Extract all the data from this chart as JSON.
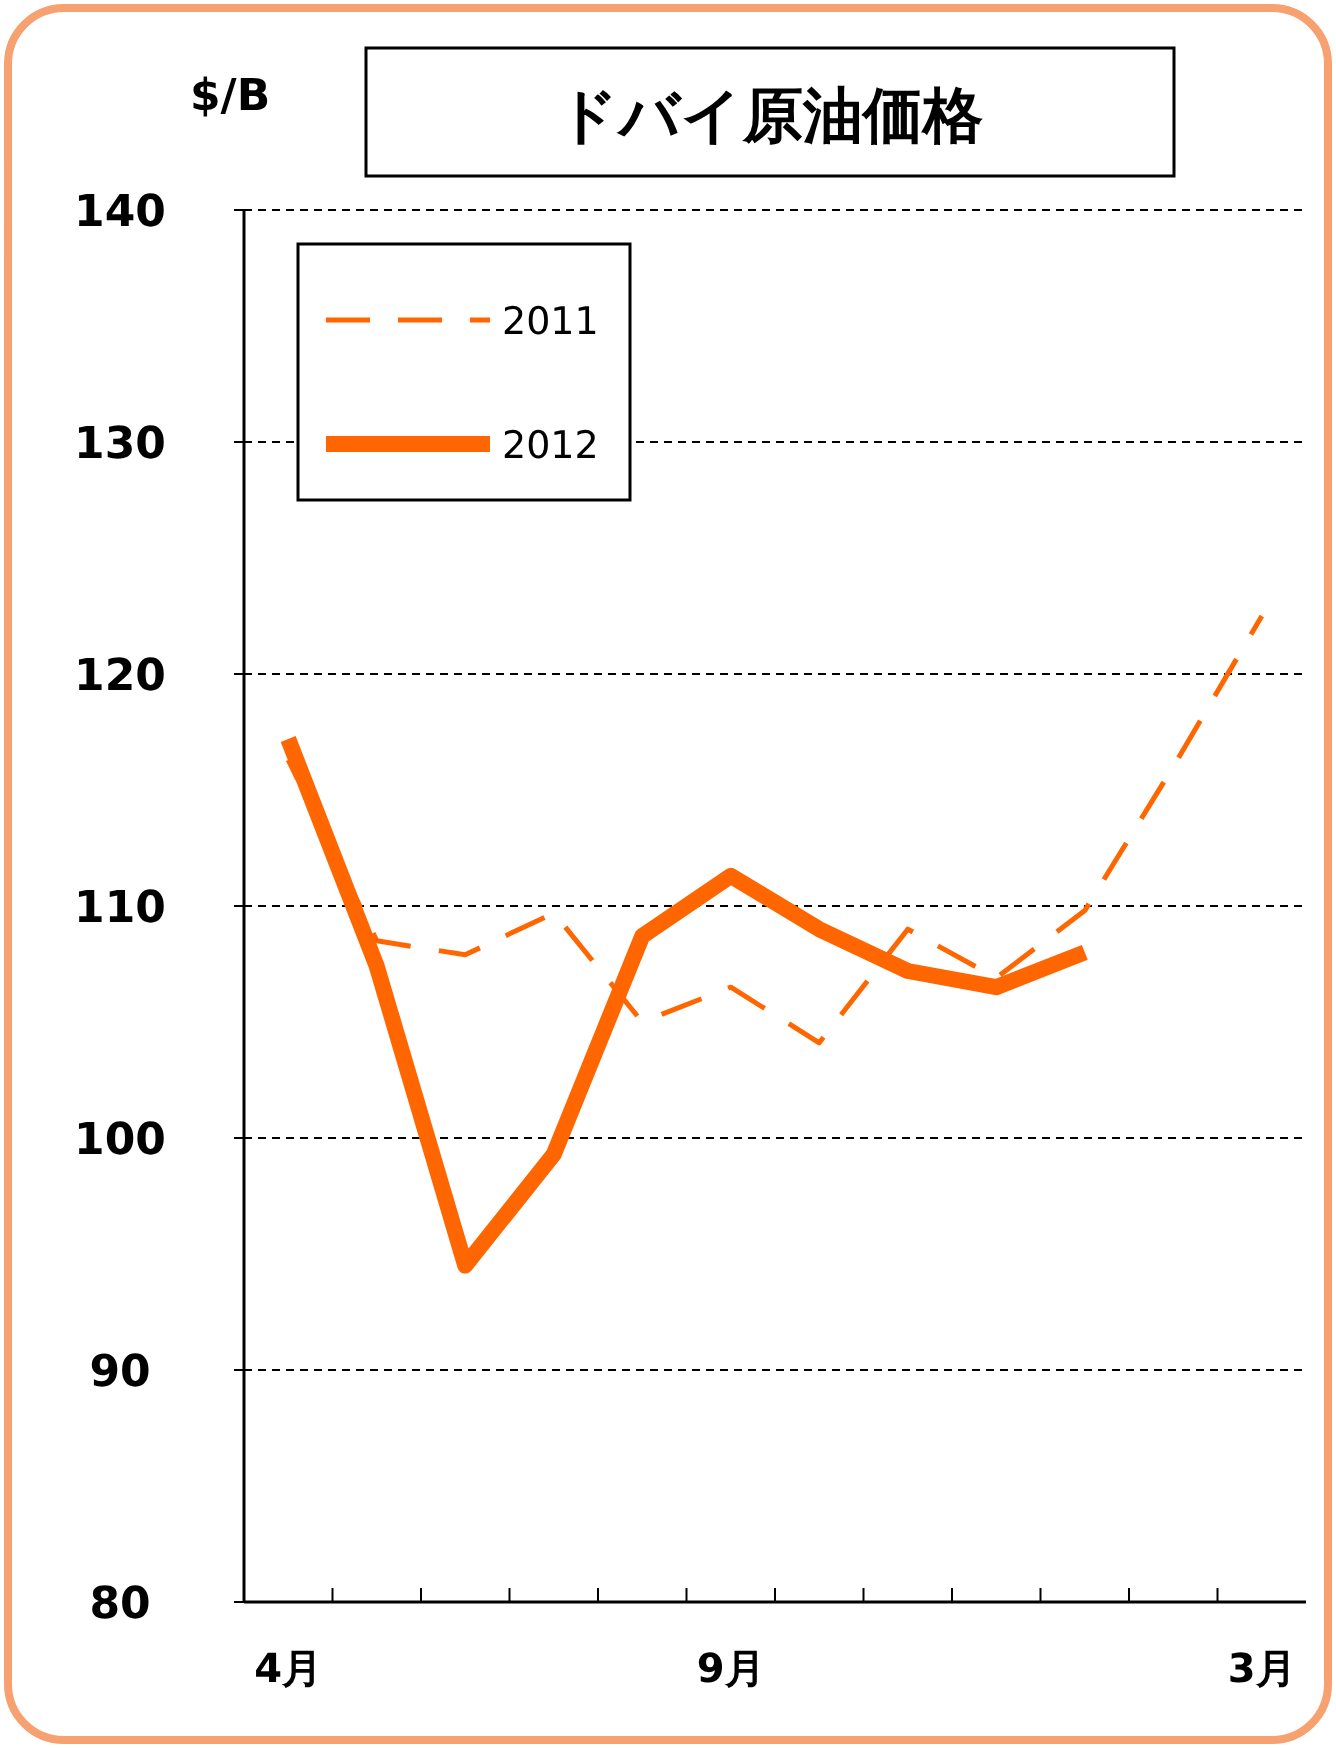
{
  "chart_data": {
    "type": "line",
    "title": "ドバイ原油価格",
    "ylabel": "$/B",
    "categories": [
      "4月",
      null,
      null,
      null,
      null,
      "9月",
      null,
      null,
      null,
      null,
      null,
      "3月"
    ],
    "series": [
      {
        "name": "2011",
        "color": "#ff6600",
        "line_style": "dashed",
        "values": [
          116.3,
          108.5,
          107.9,
          109.7,
          105.0,
          106.5,
          104.1,
          109.0,
          106.9,
          109.8,
          116.0,
          122.5
        ]
      },
      {
        "name": "2012",
        "color": "#ff6600",
        "line_style": "solid",
        "values": [
          117.2,
          107.4,
          94.5,
          99.3,
          108.7,
          111.3,
          109.0,
          107.2,
          106.5,
          108.0,
          null,
          null
        ]
      }
    ],
    "ylim": [
      80,
      140
    ],
    "yticks": [
      80,
      90,
      100,
      110,
      120,
      130,
      140
    ],
    "grid": "y",
    "legend": "top left",
    "marker": "none"
  }
}
